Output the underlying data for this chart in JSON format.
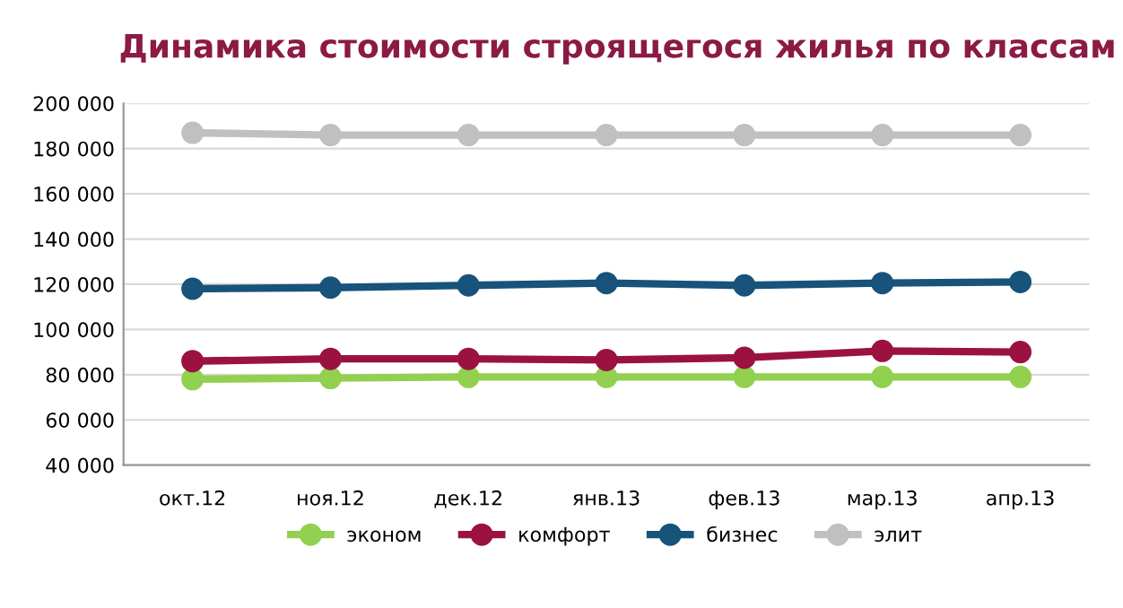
{
  "chart_data": {
    "type": "line",
    "title": "Динамика стоимости строящегося жилья по классам",
    "categories": [
      "окт.12",
      "ноя.12",
      "дек.12",
      "янв.13",
      "фев.13",
      "мар.13",
      "апр.13"
    ],
    "series": [
      {
        "name": "эконом",
        "color": "#92d050",
        "values": [
          78000,
          78500,
          79000,
          79000,
          79000,
          79000,
          79000
        ]
      },
      {
        "name": "комфорт",
        "color": "#9b1240",
        "values": [
          86000,
          87000,
          87000,
          86500,
          87500,
          90500,
          90000
        ]
      },
      {
        "name": "бизнес",
        "color": "#17537a",
        "values": [
          118000,
          118500,
          119500,
          120500,
          119500,
          120500,
          121000
        ]
      },
      {
        "name": "элит",
        "color": "#c0c0c0",
        "values": [
          187000,
          186000,
          186000,
          186000,
          186000,
          186000,
          186000
        ]
      }
    ],
    "ylim": [
      40000,
      200000
    ],
    "yticks": [
      {
        "value": 40000,
        "label": "40 000"
      },
      {
        "value": 60000,
        "label": "60 000"
      },
      {
        "value": 80000,
        "label": "80 000"
      },
      {
        "value": 100000,
        "label": "100 000"
      },
      {
        "value": 120000,
        "label": "120 000"
      },
      {
        "value": 140000,
        "label": "140 000"
      },
      {
        "value": 160000,
        "label": "160 000"
      },
      {
        "value": 180000,
        "label": "180 000"
      },
      {
        "value": 200000,
        "label": "200 000"
      }
    ],
    "grid": "y",
    "legend": "bottom",
    "marker": "circle",
    "line_style": "solid"
  }
}
